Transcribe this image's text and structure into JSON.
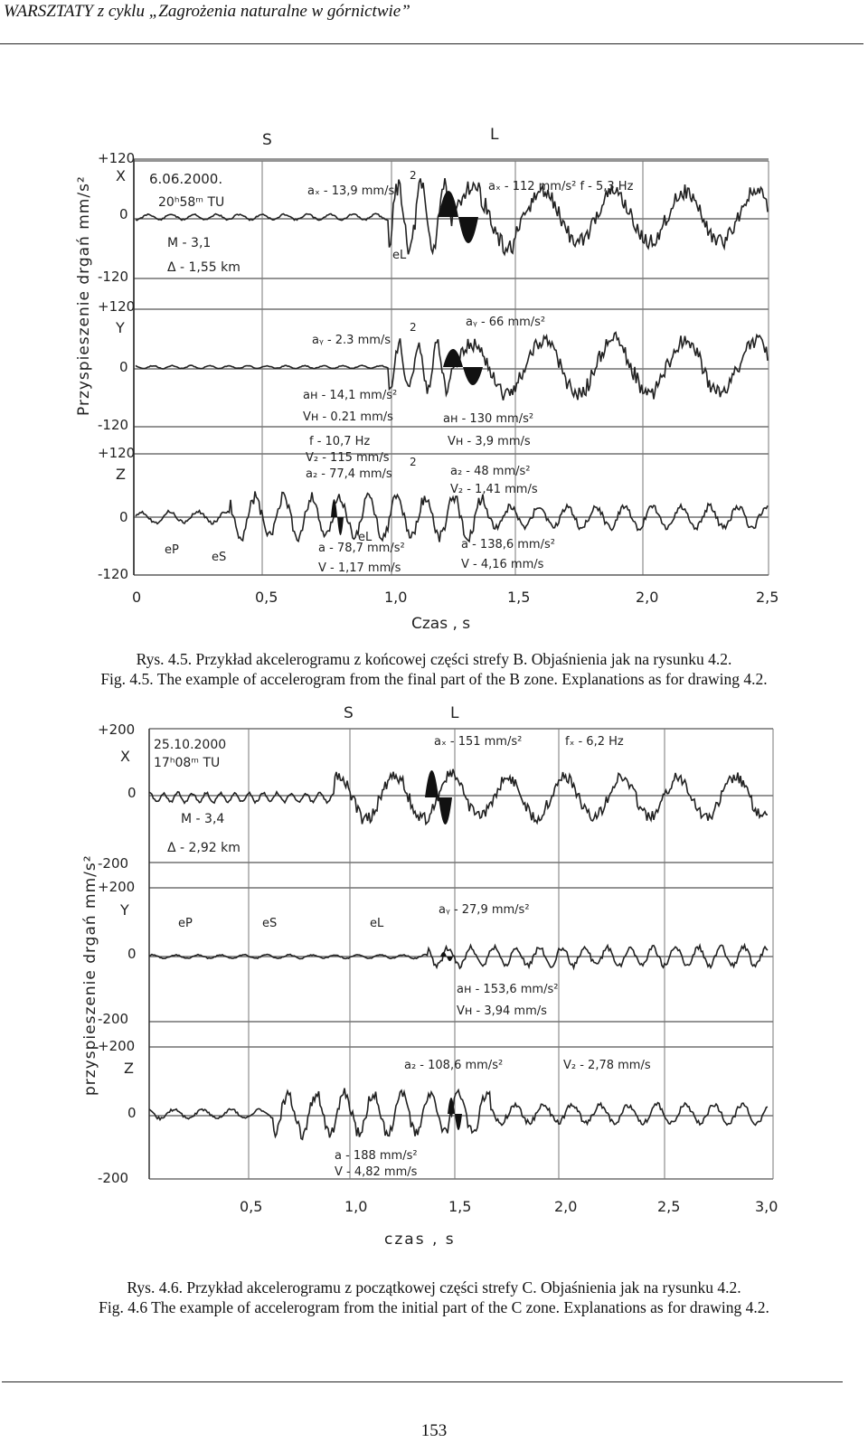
{
  "header": {
    "title": "WARSZTATY z cyklu „Zagrożenia naturalne w górnictwie”"
  },
  "figure1": {
    "ylabel": "Przyspieszenie  drgań   mm/s²",
    "xlabel": "Czas , s",
    "markers": [
      "S",
      "L"
    ],
    "xticks": [
      "0",
      "0,5",
      "1,0",
      "1,5",
      "2,0",
      "2,5"
    ],
    "panels": [
      {
        "axis": "X",
        "ticks": [
          "+120",
          "0",
          "-120"
        ],
        "notes": [
          "6.06.2000.",
          "20ʰ58ᵐ TU",
          "M - 3,1",
          "Δ - 1,55 km",
          "aₓ - 13,9 mm/s",
          "2",
          "aₓ - 112 mm/s²  f - 5,3 Hz",
          "eL"
        ]
      },
      {
        "axis": "Y",
        "ticks": [
          "+120",
          "0",
          "-120"
        ],
        "notes": [
          "aᵧ - 2.3 mm/s",
          "2",
          "aᵧ - 66 mm/s²",
          "aʜ - 14,1 mm/s²",
          "Vʜ - 0.21 mm/s",
          "aʜ - 130 mm/s²",
          "Vʜ - 3,9 mm/s"
        ]
      },
      {
        "axis": "Z",
        "ticks": [
          "+120",
          "0",
          "-120"
        ],
        "notes": [
          "f - 10,7 Hz",
          "V₂ - 115 mm/s",
          "a₂ - 77,4 mm/s",
          "2",
          "a₂ - 48 mm/s²",
          "V₂ - 1,41 mm/s",
          "eP",
          "eS",
          "eL",
          "a - 78,7 mm/s²",
          "V - 1,17 mm/s",
          "a - 138,6 mm/s²",
          "V - 4,16 mm/s"
        ]
      }
    ]
  },
  "caption1": {
    "pl": "Rys. 4.5. Przykład akcelerogramu z końcowej części strefy B. Objaśnienia jak na rysunku 4.2.",
    "en": "Fig. 4.5. The example of accelerogram from the final part of the B zone. Explanations as for drawing 4.2."
  },
  "figure2": {
    "ylabel": "przyspieszenie  drgań  mm/s²",
    "xlabel": "czas , s",
    "markers": [
      "S",
      "L"
    ],
    "xticks": [
      "0,5",
      "1,0",
      "1,5",
      "2,0",
      "2,5",
      "3,0"
    ],
    "panels": [
      {
        "axis": "X",
        "ticks": [
          "+200",
          "0",
          "-200"
        ],
        "notes": [
          "25.10.2000",
          "17ʰ08ᵐ TU",
          "M - 3,4",
          "Δ - 2,92 km",
          "aₓ - 151 mm/s²",
          "fₓ - 6,2 Hz"
        ]
      },
      {
        "axis": "Y",
        "ticks": [
          "+200",
          "0",
          "-200"
        ],
        "notes": [
          "eP",
          "eS",
          "eL",
          "aᵧ - 27,9 mm/s²",
          "aʜ - 153,6 mm/s²",
          "Vʜ - 3,94 mm/s"
        ]
      },
      {
        "axis": "Z",
        "ticks": [
          "+200",
          "0",
          "-200"
        ],
        "notes": [
          "a₂ - 108,6 mm/s²",
          "V₂ - 2,78 mm/s",
          "a - 188 mm/s²",
          "V - 4,82 mm/s"
        ]
      }
    ]
  },
  "caption2": {
    "pl": "Rys. 4.6. Przykład akcelerogramu z początkowej części strefy C. Objaśnienia jak na rysunku 4.2.",
    "en": "Fig. 4.6 The example of accelerogram from the initial part of the C zone. Explanations as for drawing 4.2."
  },
  "page_number": "153"
}
